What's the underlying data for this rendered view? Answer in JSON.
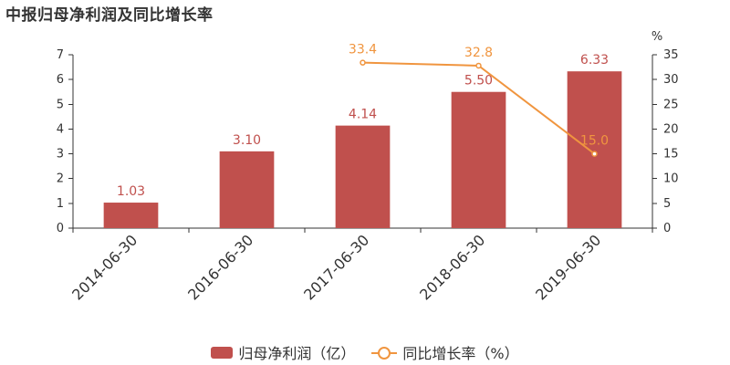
{
  "colors": {
    "bar": "#c0504d",
    "line": "#f0953f"
  },
  "chart_data": {
    "title": "中报归母净利润及同比增长率",
    "type": "bar+line",
    "categories": [
      "2014-06-30",
      "2016-06-30",
      "2017-06-30",
      "2018-06-30",
      "2019-06-30"
    ],
    "series": [
      {
        "name": "归母净利润（亿）",
        "type": "bar",
        "axis": "left",
        "values": [
          1.03,
          3.1,
          4.14,
          5.5,
          6.33
        ],
        "labels": [
          "1.03",
          "3.10",
          "4.14",
          "5.50",
          "6.33"
        ]
      },
      {
        "name": "同比增长率（%）",
        "type": "line",
        "axis": "right",
        "values": [
          null,
          null,
          33.4,
          32.8,
          15.0
        ],
        "labels": [
          "",
          "",
          "33.4",
          "32.8",
          "15.0"
        ]
      }
    ],
    "y_left": {
      "min": 0,
      "max": 7,
      "ticks": [
        "0",
        "1",
        "2",
        "3",
        "4",
        "5",
        "6",
        "7"
      ]
    },
    "y_right": {
      "min": 0,
      "max": 35,
      "unit": "%",
      "ticks": [
        "0",
        "5",
        "10",
        "15",
        "20",
        "25",
        "30",
        "35"
      ]
    },
    "legend_position": "bottom-center",
    "grid": false
  }
}
